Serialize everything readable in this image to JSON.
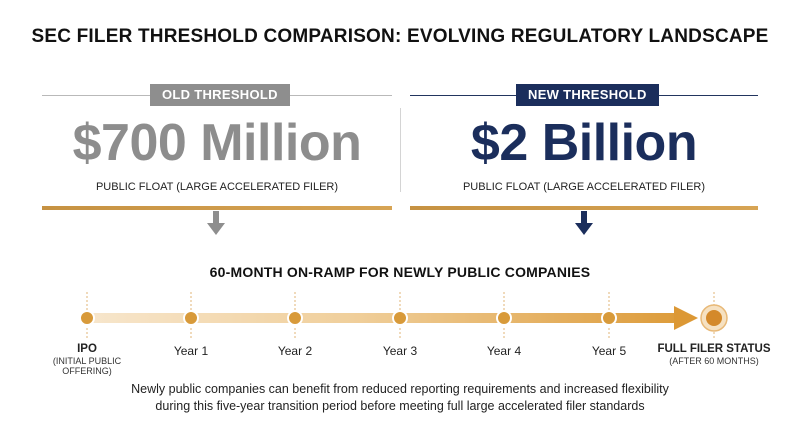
{
  "title": "SEC FILER THRESHOLD COMPARISON: EVOLVING REGULATORY LANDSCAPE",
  "old": {
    "label": "OLD THRESHOLD",
    "amount": "$700 Million",
    "description": "PUBLIC FLOAT (LARGE ACCELERATED FILER)",
    "color": "#8e8e8e"
  },
  "new": {
    "label": "NEW THRESHOLD",
    "amount": "$2 Billion",
    "description": "PUBLIC FLOAT (LARGE ACCELERATED FILER)",
    "color": "#1b2e5c"
  },
  "onramp": {
    "title": "60-MONTH ON-RAMP FOR NEWLY PUBLIC COMPANIES",
    "accent_color": "#d89a3a",
    "start": {
      "label": "IPO",
      "sublabel": "(INITIAL PUBLIC OFFERING)"
    },
    "years": [
      "Year 1",
      "Year 2",
      "Year 3",
      "Year 4",
      "Year 5"
    ],
    "end": {
      "label": "FULL FILER STATUS",
      "sublabel": "(AFTER 60 MONTHS)"
    }
  },
  "footnote": {
    "line1": "Newly public companies can benefit from reduced reporting requirements and increased flexibility",
    "line2": "during this five-year transition period before meeting full large accelerated filer standards"
  }
}
